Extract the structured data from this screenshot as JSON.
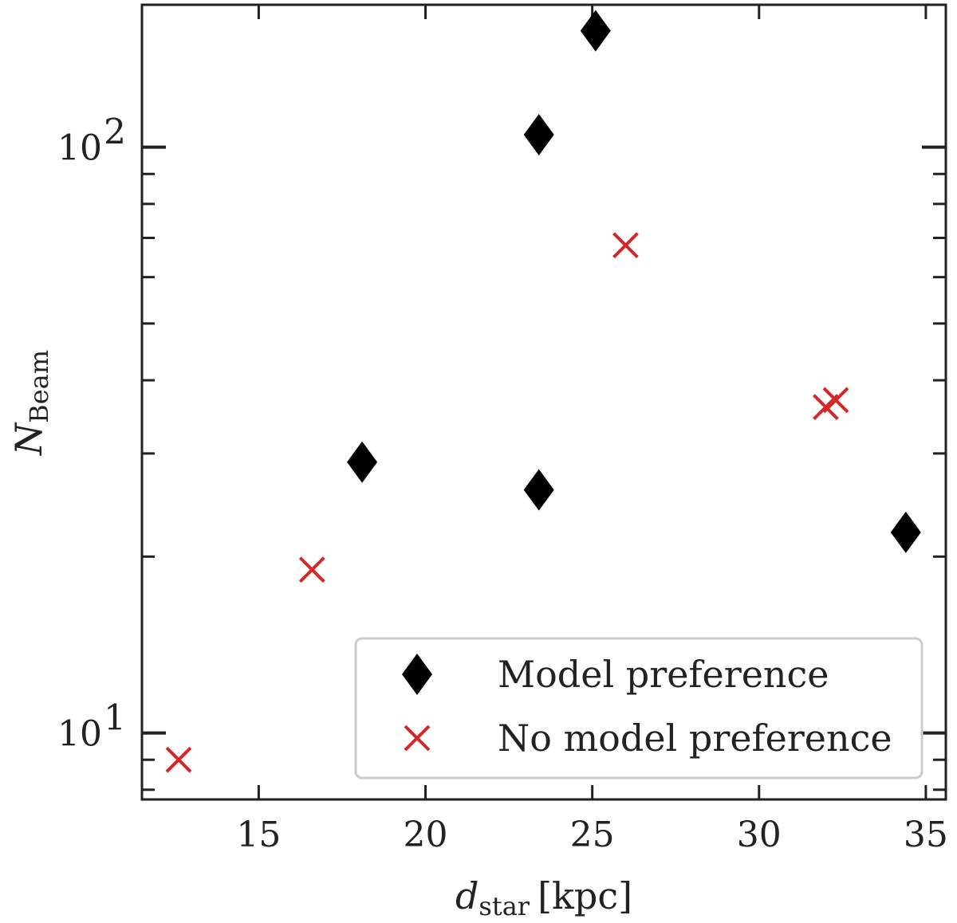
{
  "chart_data": {
    "type": "scatter",
    "title": "",
    "xlabel": "[kpc]",
    "xlabel_symbol": "d",
    "xlabel_subscript": "star",
    "ylabel_symbol": "N",
    "ylabel_subscript": "Beam",
    "xlim": [
      11.5,
      35.6
    ],
    "ylim": [
      7.7,
      175
    ],
    "yscale": "log",
    "x_ticks": [
      15,
      20,
      25,
      30,
      35
    ],
    "x_tick_labels": [
      "15",
      "20",
      "25",
      "30",
      "35"
    ],
    "y_major_ticks": [
      10,
      100
    ],
    "y_tick_labels": [
      {
        "base": "10",
        "exp": "1"
      },
      {
        "base": "10",
        "exp": "2"
      }
    ],
    "legend_position": "lower-right",
    "series": [
      {
        "name": "Model preference",
        "marker": "diamond",
        "color": "#000000",
        "points": [
          {
            "x": 18.1,
            "y": 29
          },
          {
            "x": 23.4,
            "y": 26
          },
          {
            "x": 23.4,
            "y": 105
          },
          {
            "x": 25.1,
            "y": 158
          },
          {
            "x": 34.4,
            "y": 22
          }
        ]
      },
      {
        "name": "No model preference",
        "marker": "x",
        "color": "#d62728",
        "points": [
          {
            "x": 12.6,
            "y": 9
          },
          {
            "x": 16.6,
            "y": 19
          },
          {
            "x": 26.0,
            "y": 68
          },
          {
            "x": 32.0,
            "y": 36
          },
          {
            "x": 32.3,
            "y": 37
          }
        ]
      }
    ]
  }
}
